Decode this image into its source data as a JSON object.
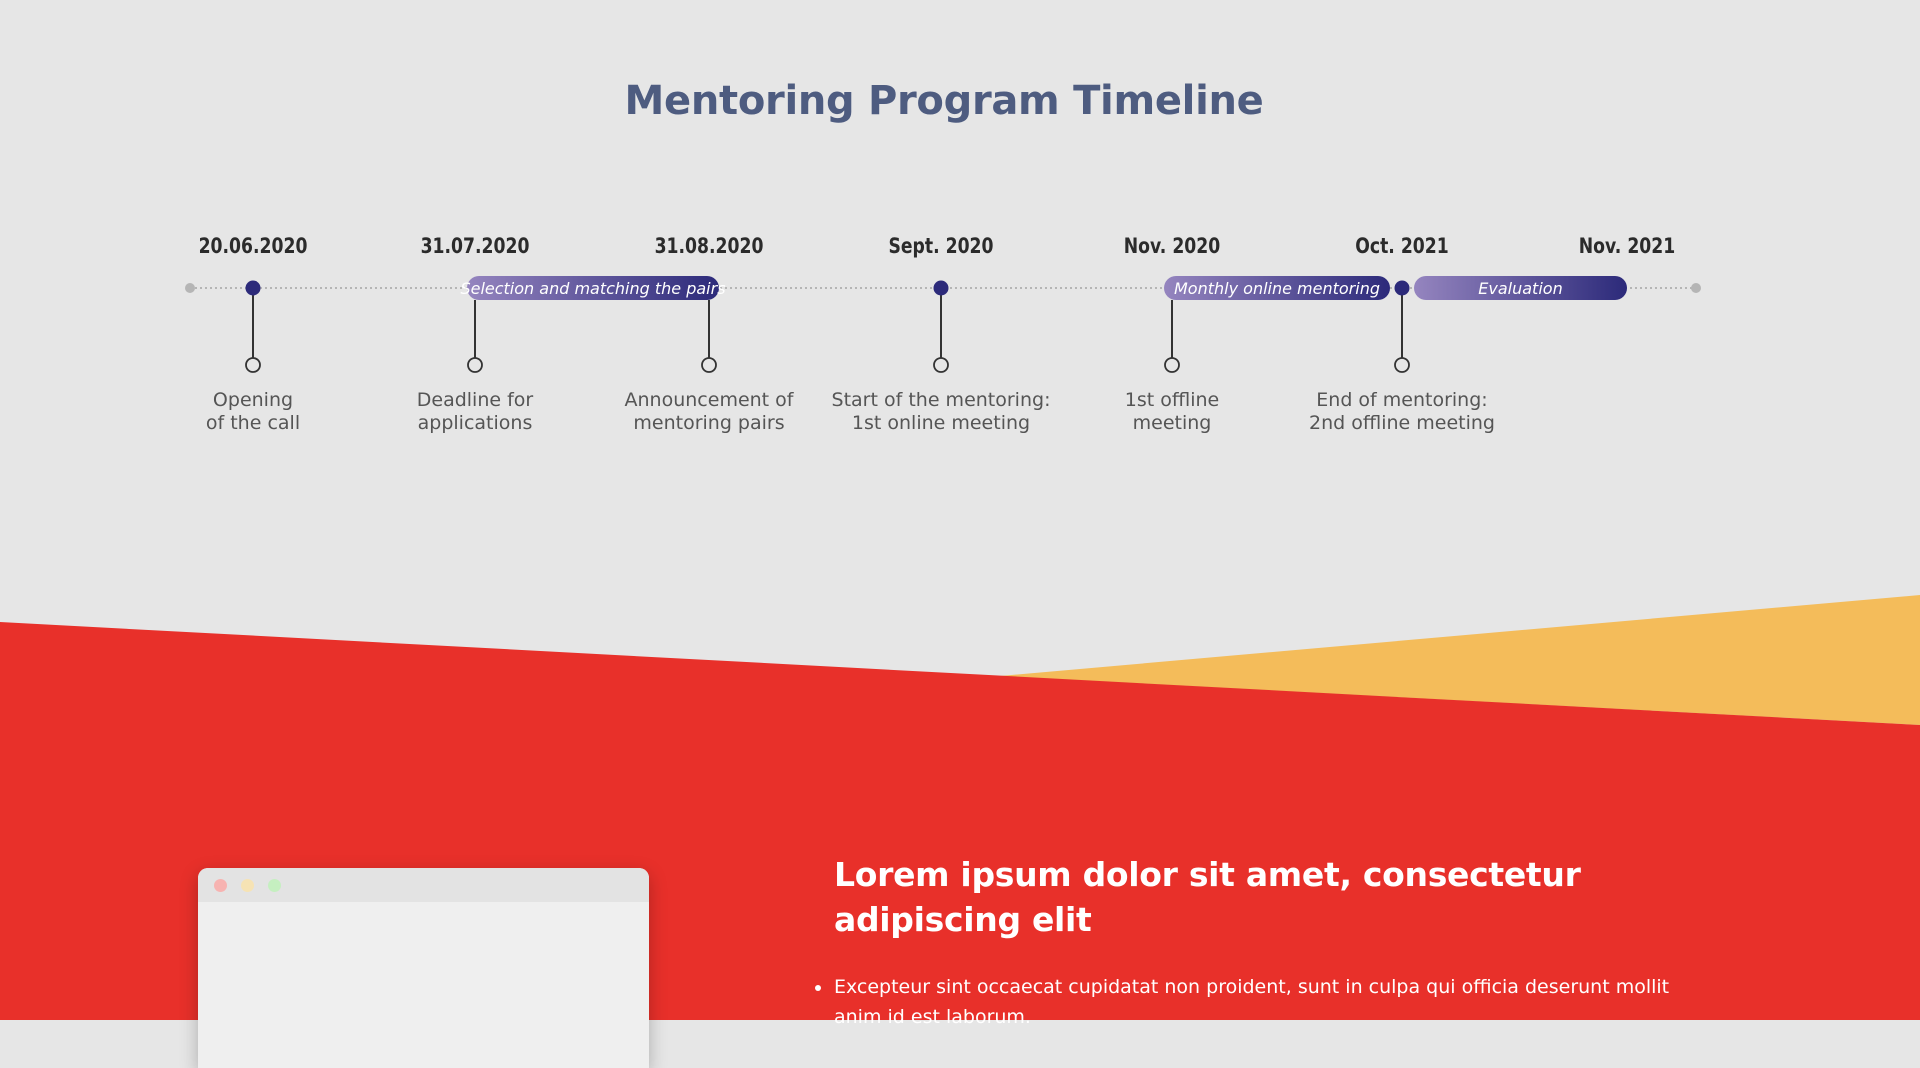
{
  "title": "Mentoring Program Timeline",
  "timeline": {
    "milestones": [
      {
        "date": "20.06.2020",
        "caption": [
          "Opening",
          "of the call"
        ],
        "dot": "filled",
        "anchor": "dot"
      },
      {
        "date": "31.07.2020",
        "caption": [
          "Deadline for",
          "applications"
        ],
        "dot": "none",
        "anchor": "bar"
      },
      {
        "date": "31.08.2020",
        "caption": [
          "Announcement of",
          "mentoring pairs"
        ],
        "dot": "none",
        "anchor": "bar"
      },
      {
        "date": "Sept. 2020",
        "caption": [
          "Start of the mentoring:",
          "1st online meeting"
        ],
        "dot": "filled",
        "anchor": "dot"
      },
      {
        "date": "Nov. 2020",
        "caption": [
          "1st offline",
          "meeting"
        ],
        "dot": "none",
        "anchor": "bar"
      },
      {
        "date": "Oct. 2021",
        "caption": [
          "End of mentoring:",
          "2nd offline meeting"
        ],
        "dot": "filled",
        "anchor": "dot"
      },
      {
        "date": "Nov. 2021",
        "caption": [],
        "dot": "none",
        "anchor": "none"
      }
    ],
    "phases": [
      {
        "label": "Selection and matching the pairs",
        "from_milestone": 1,
        "to_milestone": 2
      },
      {
        "label": "Monthly online mentoring",
        "from_milestone": 4,
        "to_milestone": 5
      },
      {
        "label": "Evaluation",
        "from_milestone": 5,
        "to_milestone": 6
      }
    ],
    "colors": {
      "dot": "#2c2a7a",
      "bar_start": "#9585bf",
      "bar_end": "#2c2a7a",
      "track": "#b5b5b5",
      "stem": "#333333"
    }
  },
  "hero": {
    "heading": "Lorem ipsum dolor sit amet, consectetur adipiscing elit",
    "bullets": [
      "Excepteur sint occaecat cupidatat non proident, sunt in culpa qui officia deserunt mollit anim id est laborum."
    ],
    "colors": {
      "red": "#e8302a",
      "yellow": "#f4bc5a"
    }
  }
}
